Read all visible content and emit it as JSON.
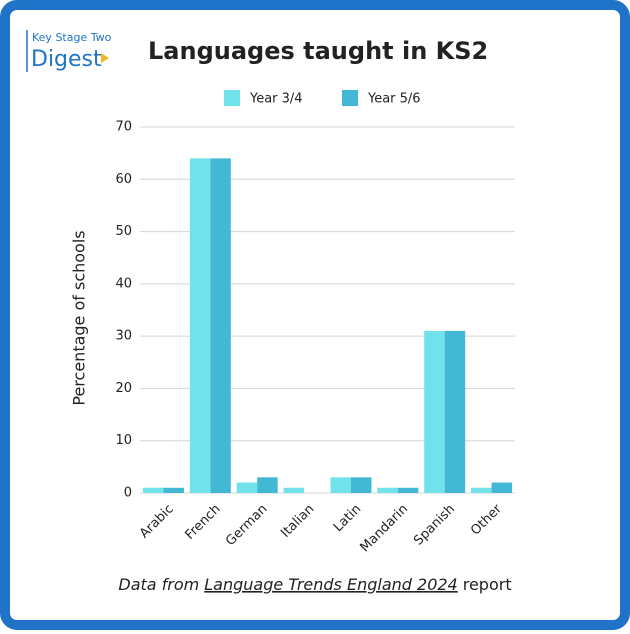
{
  "logo": {
    "line1": "Key Stage Two",
    "line2": "Digest"
  },
  "chart_data": {
    "type": "bar",
    "title": "Languages taught in KS2",
    "y_label": "Percentage of schools",
    "categories": [
      "Arabic",
      "French",
      "German",
      "Italian",
      "Latin",
      "Mandarin",
      "Spanish",
      "Other"
    ],
    "series": [
      {
        "name": "Year 3/4",
        "color": "#72e2ea",
        "values": [
          1,
          64,
          2,
          1,
          3,
          1,
          31,
          1
        ]
      },
      {
        "name": "Year 5/6",
        "color": "#43b8d4",
        "values": [
          1,
          64,
          3,
          0,
          3,
          1,
          31,
          2
        ]
      }
    ],
    "ylim": [
      0,
      70
    ],
    "yticks": [
      0,
      10,
      20,
      30,
      40,
      50,
      60,
      70
    ],
    "grid": true,
    "legend": "top",
    "source": [
      "Data from",
      "Language Trends England 2024",
      "report"
    ]
  }
}
